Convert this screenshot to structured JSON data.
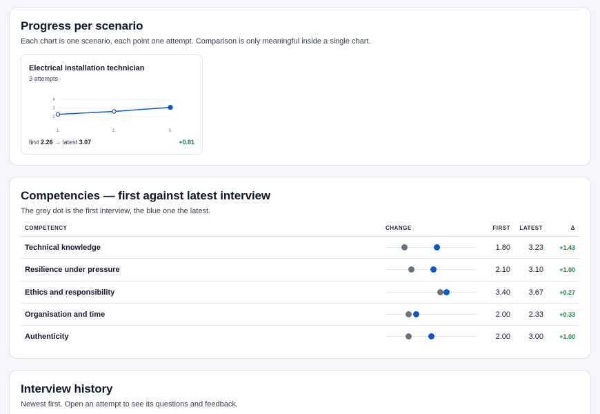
{
  "progress": {
    "title": "Progress per scenario",
    "subtitle": "Each chart is one scenario, each point one attempt. Comparison is only meaningful inside a single chart.",
    "scenario": {
      "title": "Electrical installation technician",
      "attempts": "3 attempts",
      "footer_first_label": "first",
      "footer_first": "2.26",
      "footer_arrow": "→",
      "footer_latest_label": "latest",
      "footer_latest": "3.07",
      "delta": "+0.81",
      "y_ticks": [
        "4",
        "3",
        "2"
      ],
      "x_ticks": [
        "1.",
        "2.",
        "3."
      ],
      "chart_data": {
        "type": "line",
        "x": [
          "1.",
          "2.",
          "3."
        ],
        "values": [
          2.26,
          2.6,
          3.07
        ],
        "ylim": [
          2,
          4
        ],
        "color": "#0b57d0"
      }
    }
  },
  "competencies": {
    "title": "Competencies — first against latest interview",
    "subtitle": "The grey dot is the first interview, the blue one the latest.",
    "columns": {
      "competency": "COMPETENCY",
      "change": "CHANGE",
      "first": "FIRST",
      "latest": "LATEST",
      "delta": "Δ"
    },
    "scale": [
      1,
      5
    ],
    "rows": [
      {
        "name": "Technical knowledge",
        "first": "1.80",
        "latest": "3.23",
        "delta": "+1.43",
        "first_val": 1.8,
        "latest_val": 3.23
      },
      {
        "name": "Resilience under pressure",
        "first": "2.10",
        "latest": "3.10",
        "delta": "+1.00",
        "first_val": 2.1,
        "latest_val": 3.1
      },
      {
        "name": "Ethics and responsibility",
        "first": "3.40",
        "latest": "3.67",
        "delta": "+0.27",
        "first_val": 3.4,
        "latest_val": 3.67
      },
      {
        "name": "Organisation and time",
        "first": "2.00",
        "latest": "2.33",
        "delta": "+0.33",
        "first_val": 2.0,
        "latest_val": 2.33
      },
      {
        "name": "Authenticity",
        "first": "2.00",
        "latest": "3.00",
        "delta": "+1.00",
        "first_val": 2.0,
        "latest_val": 3.0
      }
    ],
    "colors": {
      "first_dot": "#6b7280",
      "latest_dot": "#0b57d0",
      "delta_positive": "#15803d"
    }
  },
  "history": {
    "title": "Interview history",
    "subtitle": "Newest first. Open an attempt to see its questions and feedback."
  }
}
